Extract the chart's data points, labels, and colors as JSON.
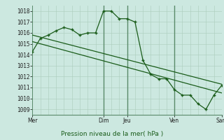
{
  "background_color": "#cce8e0",
  "grid_color": "#aaccbb",
  "line_color": "#1a5c1a",
  "title": "Pression niveau de la mer( hPa )",
  "ylim": [
    1008.5,
    1018.5
  ],
  "yticks": [
    1009,
    1010,
    1011,
    1012,
    1013,
    1014,
    1015,
    1016,
    1017,
    1018
  ],
  "xtick_labels": [
    "Mer",
    "Dim",
    "Jeu",
    "Ven",
    "Sam"
  ],
  "xtick_positions": [
    0,
    9,
    12,
    18,
    24
  ],
  "vlines": [
    0,
    9,
    12,
    18,
    24
  ],
  "forecast_x": [
    0,
    1,
    2,
    3,
    4,
    5,
    6,
    7,
    8,
    9,
    10,
    11,
    12,
    13,
    14,
    15,
    16,
    17,
    18,
    19,
    20,
    21,
    22,
    23,
    24
  ],
  "forecast_y": [
    1014.3,
    1015.5,
    1015.8,
    1016.2,
    1016.5,
    1016.3,
    1015.8,
    1016.0,
    1016.0,
    1018.0,
    1018.0,
    1017.3,
    1017.3,
    1017.0,
    1013.5,
    1012.2,
    1011.8,
    1011.8,
    1010.8,
    1010.3,
    1010.3,
    1009.5,
    1009.0,
    1010.3,
    1011.2
  ],
  "trend1_x": [
    0,
    24
  ],
  "trend1_y": [
    1015.8,
    1011.3
  ],
  "trend2_x": [
    0,
    24
  ],
  "trend2_y": [
    1015.2,
    1010.5
  ],
  "marker_indices": [
    0,
    1,
    2,
    3,
    4,
    5,
    6,
    7,
    8,
    9,
    10,
    11,
    12,
    13,
    14,
    15,
    16,
    17,
    18,
    19,
    20,
    21,
    22,
    23,
    24
  ]
}
